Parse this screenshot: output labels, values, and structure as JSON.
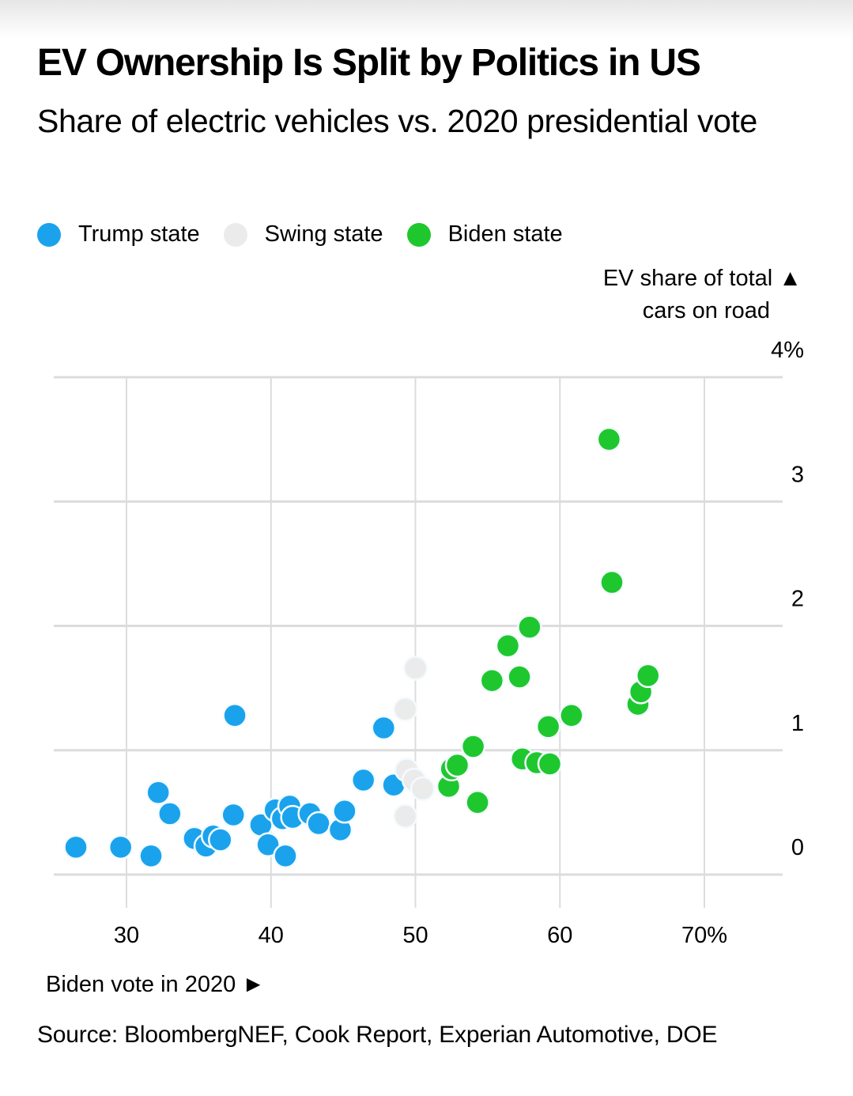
{
  "header": {
    "title": "EV Ownership Is Split by Politics in US",
    "subtitle": "Share of electric vehicles vs. 2020 presidential vote"
  },
  "legend": [
    {
      "label": "Trump state",
      "color": "#1aa3ec"
    },
    {
      "label": "Swing state",
      "color": "#ebebeb"
    },
    {
      "label": "Biden state",
      "color": "#1fc72e"
    }
  ],
  "footer": {
    "source": "Source: BloombergNEF, Cook Report, Experian Automotive, DOE"
  },
  "chart_data": {
    "type": "scatter",
    "title": "EV Ownership Is Split by Politics in US",
    "subtitle": "Share of electric vehicles vs. 2020 presidential vote",
    "xlabel": "Biden vote in 2020 ►",
    "ylabel_line1": "EV share of total ▲",
    "ylabel_line2": "cars on road",
    "xlim": [
      25,
      74
    ],
    "ylim": [
      -0.22,
      4
    ],
    "xticks": [
      30,
      40,
      50,
      60,
      70
    ],
    "xtick_labels": [
      "30",
      "40",
      "50",
      "60",
      "70%"
    ],
    "yticks": [
      0,
      1,
      2,
      3,
      4
    ],
    "ytick_labels": [
      "0",
      "1",
      "2",
      "3",
      "4%"
    ],
    "grid": true,
    "legend_position": "top-left",
    "series": [
      {
        "name": "Trump state",
        "color": "#1aa3ec",
        "points": [
          [
            26.5,
            0.22
          ],
          [
            29.6,
            0.22
          ],
          [
            31.7,
            0.15
          ],
          [
            32.2,
            0.66
          ],
          [
            33.0,
            0.49
          ],
          [
            34.7,
            0.29
          ],
          [
            35.5,
            0.23
          ],
          [
            36.0,
            0.31
          ],
          [
            36.5,
            0.28
          ],
          [
            37.4,
            0.48
          ],
          [
            37.5,
            1.28
          ],
          [
            39.3,
            0.4
          ],
          [
            39.8,
            0.24
          ],
          [
            41.0,
            0.15
          ],
          [
            40.3,
            0.52
          ],
          [
            40.8,
            0.45
          ],
          [
            41.3,
            0.55
          ],
          [
            41.5,
            0.46
          ],
          [
            42.7,
            0.49
          ],
          [
            43.3,
            0.41
          ],
          [
            44.8,
            0.36
          ],
          [
            45.1,
            0.51
          ],
          [
            46.4,
            0.76
          ],
          [
            47.8,
            1.18
          ],
          [
            48.5,
            0.72
          ]
        ]
      },
      {
        "name": "Swing state",
        "color": "#ebebeb",
        "points": [
          [
            50.0,
            1.66
          ],
          [
            49.3,
            1.33
          ],
          [
            49.4,
            0.84
          ],
          [
            49.9,
            0.76
          ],
          [
            50.5,
            0.69
          ],
          [
            49.3,
            0.47
          ]
        ]
      },
      {
        "name": "Biden state",
        "color": "#1fc72e",
        "points": [
          [
            52.3,
            0.71
          ],
          [
            52.5,
            0.85
          ],
          [
            52.9,
            0.88
          ],
          [
            54.0,
            1.03
          ],
          [
            54.3,
            0.58
          ],
          [
            55.3,
            1.56
          ],
          [
            56.4,
            1.84
          ],
          [
            57.2,
            1.59
          ],
          [
            57.9,
            1.99
          ],
          [
            57.4,
            0.93
          ],
          [
            58.4,
            0.9
          ],
          [
            59.3,
            0.89
          ],
          [
            59.2,
            1.19
          ],
          [
            60.8,
            1.28
          ],
          [
            63.4,
            3.5
          ],
          [
            63.6,
            2.35
          ],
          [
            65.4,
            1.37
          ],
          [
            65.6,
            1.47
          ],
          [
            66.1,
            1.6
          ]
        ]
      }
    ]
  }
}
